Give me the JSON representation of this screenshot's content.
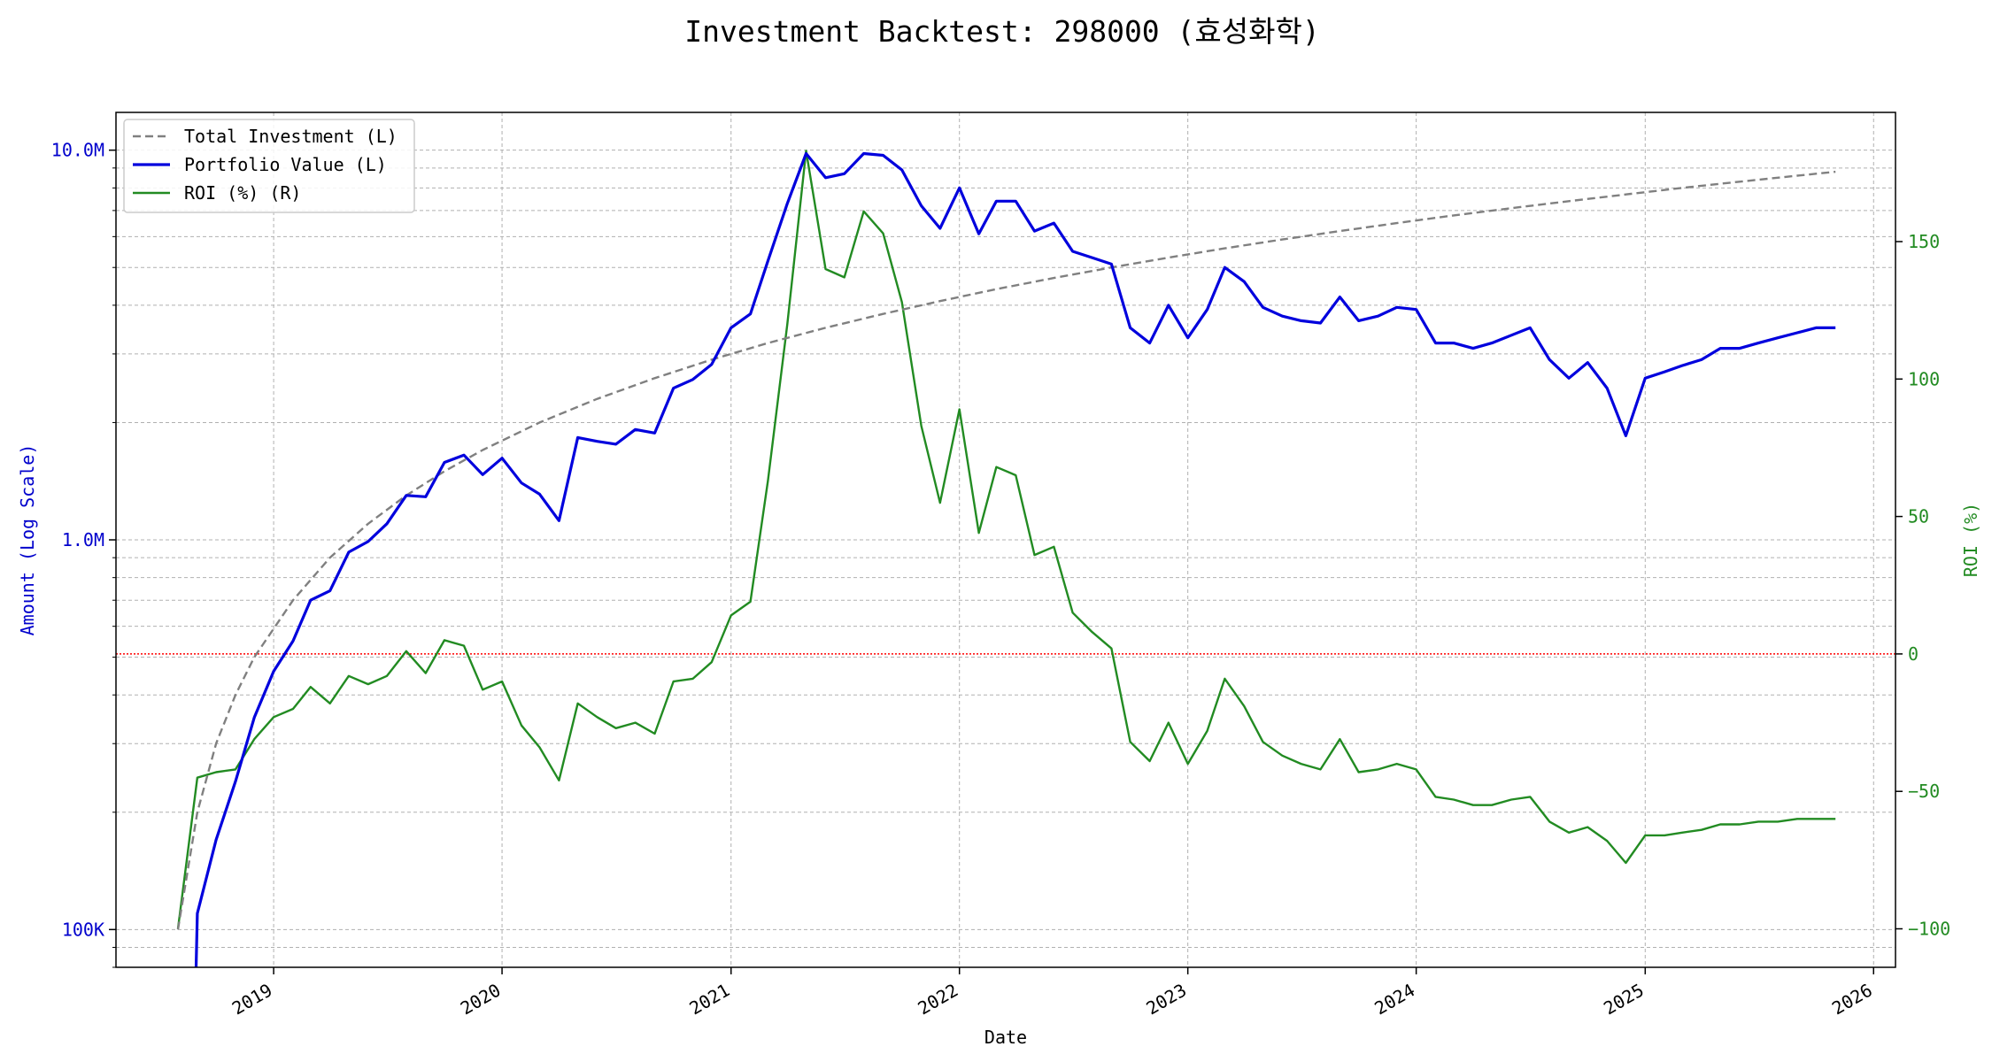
{
  "chart_data": {
    "type": "line",
    "title": "Investment Backtest: 298000 (효성화학)",
    "xlabel": "Date",
    "ylabel_left": "Amount (Log Scale)",
    "ylabel_right": "ROI (%)",
    "yscale_left": "log",
    "ylim_left": [
      80000,
      12500000
    ],
    "ylim_right": [
      -114,
      197
    ],
    "xlim": [
      "2018-04-24",
      "2026-02-05"
    ],
    "grid": true,
    "legend_position": "top-left",
    "x_ticks": [
      "2019",
      "2020",
      "2021",
      "2022",
      "2023",
      "2024",
      "2025",
      "2026"
    ],
    "y_left_ticks": [
      {
        "value": 100000,
        "label": "100K"
      },
      {
        "value": 1000000,
        "label": "1.0M"
      },
      {
        "value": 10000000,
        "label": "10.0M"
      }
    ],
    "y_right_ticks": [
      {
        "value": -100,
        "label": "−100"
      },
      {
        "value": -50,
        "label": "−50"
      },
      {
        "value": 0,
        "label": "0"
      },
      {
        "value": 50,
        "label": "50"
      },
      {
        "value": 100,
        "label": "100"
      },
      {
        "value": 150,
        "label": "150"
      }
    ],
    "reference_line": {
      "axis": "right",
      "value": 0,
      "color": "#ff0000",
      "style": "dotted"
    },
    "series": [
      {
        "name": "Total Investment (L)",
        "axis": "left",
        "color": "#808080",
        "style": "dashed",
        "points": [
          [
            "2018-08-01",
            100000
          ],
          [
            "2018-09-01",
            200000
          ],
          [
            "2018-10-01",
            300000
          ],
          [
            "2018-11-01",
            400000
          ],
          [
            "2018-12-01",
            500000
          ],
          [
            "2019-02-01",
            700000
          ],
          [
            "2019-04-01",
            900000
          ],
          [
            "2019-06-01",
            1100000
          ],
          [
            "2019-08-01",
            1300000
          ],
          [
            "2019-10-01",
            1500000
          ],
          [
            "2019-12-01",
            1700000
          ],
          [
            "2020-03-01",
            2000000
          ],
          [
            "2020-06-01",
            2300000
          ],
          [
            "2020-09-01",
            2600000
          ],
          [
            "2020-12-01",
            2900000
          ],
          [
            "2021-03-01",
            3200000
          ],
          [
            "2021-06-01",
            3500000
          ],
          [
            "2021-09-01",
            3800000
          ],
          [
            "2021-12-01",
            4100000
          ],
          [
            "2022-03-01",
            4400000
          ],
          [
            "2022-06-01",
            4700000
          ],
          [
            "2022-09-01",
            5000000
          ],
          [
            "2022-12-01",
            5300000
          ],
          [
            "2023-03-01",
            5600000
          ],
          [
            "2023-06-01",
            5900000
          ],
          [
            "2023-09-01",
            6200000
          ],
          [
            "2023-12-01",
            6500000
          ],
          [
            "2024-03-01",
            6800000
          ],
          [
            "2024-06-01",
            7100000
          ],
          [
            "2024-09-01",
            7400000
          ],
          [
            "2024-12-01",
            7700000
          ],
          [
            "2025-03-01",
            8000000
          ],
          [
            "2025-06-01",
            8300000
          ],
          [
            "2025-09-01",
            8600000
          ],
          [
            "2025-11-01",
            8800000
          ]
        ]
      },
      {
        "name": "Portfolio Value (L)",
        "axis": "left",
        "color": "#0000dd",
        "style": "solid",
        "points": [
          [
            "2018-08-30",
            80000
          ],
          [
            "2018-09-01",
            110000
          ],
          [
            "2018-10-01",
            170000
          ],
          [
            "2018-11-01",
            240000
          ],
          [
            "2018-12-01",
            350000
          ],
          [
            "2019-01-01",
            460000
          ],
          [
            "2019-02-01",
            550000
          ],
          [
            "2019-03-01",
            700000
          ],
          [
            "2019-04-01",
            740000
          ],
          [
            "2019-05-01",
            930000
          ],
          [
            "2019-06-01",
            990000
          ],
          [
            "2019-07-01",
            1100000
          ],
          [
            "2019-08-01",
            1300000
          ],
          [
            "2019-09-01",
            1290000
          ],
          [
            "2019-10-01",
            1580000
          ],
          [
            "2019-11-01",
            1650000
          ],
          [
            "2019-12-01",
            1470000
          ],
          [
            "2020-01-01",
            1620000
          ],
          [
            "2020-02-01",
            1400000
          ],
          [
            "2020-03-01",
            1310000
          ],
          [
            "2020-04-01",
            1120000
          ],
          [
            "2020-05-01",
            1830000
          ],
          [
            "2020-06-01",
            1790000
          ],
          [
            "2020-07-01",
            1760000
          ],
          [
            "2020-08-01",
            1920000
          ],
          [
            "2020-09-01",
            1880000
          ],
          [
            "2020-10-01",
            2450000
          ],
          [
            "2020-11-01",
            2580000
          ],
          [
            "2020-12-01",
            2820000
          ],
          [
            "2021-01-01",
            3500000
          ],
          [
            "2021-02-01",
            3800000
          ],
          [
            "2021-03-01",
            5200000
          ],
          [
            "2021-04-01",
            7300000
          ],
          [
            "2021-05-01",
            9800000
          ],
          [
            "2021-06-01",
            8500000
          ],
          [
            "2021-07-01",
            8700000
          ],
          [
            "2021-08-01",
            9800000
          ],
          [
            "2021-09-01",
            9700000
          ],
          [
            "2021-10-01",
            8900000
          ],
          [
            "2021-11-01",
            7200000
          ],
          [
            "2021-12-01",
            6300000
          ],
          [
            "2022-01-01",
            8000000
          ],
          [
            "2022-02-01",
            6100000
          ],
          [
            "2022-03-01",
            7400000
          ],
          [
            "2022-04-01",
            7400000
          ],
          [
            "2022-05-01",
            6200000
          ],
          [
            "2022-06-01",
            6500000
          ],
          [
            "2022-07-01",
            5500000
          ],
          [
            "2022-08-01",
            5300000
          ],
          [
            "2022-09-01",
            5100000
          ],
          [
            "2022-10-01",
            3500000
          ],
          [
            "2022-11-01",
            3200000
          ],
          [
            "2022-12-01",
            4000000
          ],
          [
            "2023-01-01",
            3300000
          ],
          [
            "2023-02-01",
            3900000
          ],
          [
            "2023-03-01",
            5000000
          ],
          [
            "2023-04-01",
            4600000
          ],
          [
            "2023-05-01",
            3950000
          ],
          [
            "2023-06-01",
            3750000
          ],
          [
            "2023-07-01",
            3650000
          ],
          [
            "2023-08-01",
            3600000
          ],
          [
            "2023-09-01",
            4200000
          ],
          [
            "2023-10-01",
            3650000
          ],
          [
            "2023-11-01",
            3750000
          ],
          [
            "2023-12-01",
            3950000
          ],
          [
            "2024-01-01",
            3900000
          ],
          [
            "2024-02-01",
            3200000
          ],
          [
            "2024-03-01",
            3200000
          ],
          [
            "2024-04-01",
            3100000
          ],
          [
            "2024-05-01",
            3200000
          ],
          [
            "2024-06-01",
            3350000
          ],
          [
            "2024-07-01",
            3500000
          ],
          [
            "2024-08-01",
            2900000
          ],
          [
            "2024-09-01",
            2600000
          ],
          [
            "2024-10-01",
            2850000
          ],
          [
            "2024-11-01",
            2450000
          ],
          [
            "2024-12-01",
            1850000
          ],
          [
            "2025-01-01",
            2600000
          ],
          [
            "2025-02-01",
            2700000
          ],
          [
            "2025-03-01",
            2800000
          ],
          [
            "2025-04-01",
            2900000
          ],
          [
            "2025-05-01",
            3100000
          ],
          [
            "2025-06-01",
            3100000
          ],
          [
            "2025-07-01",
            3200000
          ],
          [
            "2025-08-01",
            3300000
          ],
          [
            "2025-09-01",
            3400000
          ],
          [
            "2025-10-01",
            3500000
          ],
          [
            "2025-11-01",
            3500000
          ]
        ]
      },
      {
        "name": "ROI (%) (R)",
        "axis": "right",
        "color": "#228b22",
        "style": "solid",
        "points": [
          [
            "2018-08-01",
            -100
          ],
          [
            "2018-09-01",
            -45
          ],
          [
            "2018-10-01",
            -43
          ],
          [
            "2018-11-01",
            -42
          ],
          [
            "2018-12-01",
            -31
          ],
          [
            "2019-01-01",
            -23
          ],
          [
            "2019-02-01",
            -20
          ],
          [
            "2019-03-01",
            -12
          ],
          [
            "2019-04-01",
            -18
          ],
          [
            "2019-05-01",
            -8
          ],
          [
            "2019-06-01",
            -11
          ],
          [
            "2019-07-01",
            -8
          ],
          [
            "2019-08-01",
            1
          ],
          [
            "2019-09-01",
            -7
          ],
          [
            "2019-10-01",
            5
          ],
          [
            "2019-11-01",
            3
          ],
          [
            "2019-12-01",
            -13
          ],
          [
            "2020-01-01",
            -10
          ],
          [
            "2020-02-01",
            -26
          ],
          [
            "2020-03-01",
            -34
          ],
          [
            "2020-04-01",
            -46
          ],
          [
            "2020-05-01",
            -18
          ],
          [
            "2020-06-01",
            -23
          ],
          [
            "2020-07-01",
            -27
          ],
          [
            "2020-08-01",
            -25
          ],
          [
            "2020-09-01",
            -29
          ],
          [
            "2020-10-01",
            -10
          ],
          [
            "2020-11-01",
            -9
          ],
          [
            "2020-12-01",
            -3
          ],
          [
            "2021-01-01",
            14
          ],
          [
            "2021-02-01",
            19
          ],
          [
            "2021-03-01",
            63
          ],
          [
            "2021-04-01",
            120
          ],
          [
            "2021-05-01",
            183
          ],
          [
            "2021-06-01",
            140
          ],
          [
            "2021-07-01",
            137
          ],
          [
            "2021-08-01",
            161
          ],
          [
            "2021-09-01",
            153
          ],
          [
            "2021-10-01",
            128
          ],
          [
            "2021-11-01",
            83
          ],
          [
            "2021-12-01",
            55
          ],
          [
            "2022-01-01",
            89
          ],
          [
            "2022-02-01",
            44
          ],
          [
            "2022-03-01",
            68
          ],
          [
            "2022-04-01",
            65
          ],
          [
            "2022-05-01",
            36
          ],
          [
            "2022-06-01",
            39
          ],
          [
            "2022-07-01",
            15
          ],
          [
            "2022-08-01",
            8
          ],
          [
            "2022-09-01",
            2
          ],
          [
            "2022-10-01",
            -32
          ],
          [
            "2022-11-01",
            -39
          ],
          [
            "2022-12-01",
            -25
          ],
          [
            "2023-01-01",
            -40
          ],
          [
            "2023-02-01",
            -28
          ],
          [
            "2023-03-01",
            -9
          ],
          [
            "2023-04-01",
            -19
          ],
          [
            "2023-05-01",
            -32
          ],
          [
            "2023-06-01",
            -37
          ],
          [
            "2023-07-01",
            -40
          ],
          [
            "2023-08-01",
            -42
          ],
          [
            "2023-09-01",
            -31
          ],
          [
            "2023-10-01",
            -43
          ],
          [
            "2023-11-01",
            -42
          ],
          [
            "2023-12-01",
            -40
          ],
          [
            "2024-01-01",
            -42
          ],
          [
            "2024-02-01",
            -52
          ],
          [
            "2024-03-01",
            -53
          ],
          [
            "2024-04-01",
            -55
          ],
          [
            "2024-05-01",
            -55
          ],
          [
            "2024-06-01",
            -53
          ],
          [
            "2024-07-01",
            -52
          ],
          [
            "2024-08-01",
            -61
          ],
          [
            "2024-09-01",
            -65
          ],
          [
            "2024-10-01",
            -63
          ],
          [
            "2024-11-01",
            -68
          ],
          [
            "2024-12-01",
            -76
          ],
          [
            "2025-01-01",
            -66
          ],
          [
            "2025-02-01",
            -66
          ],
          [
            "2025-03-01",
            -65
          ],
          [
            "2025-04-01",
            -64
          ],
          [
            "2025-05-01",
            -62
          ],
          [
            "2025-06-01",
            -62
          ],
          [
            "2025-07-01",
            -61
          ],
          [
            "2025-08-01",
            -61
          ],
          [
            "2025-09-01",
            -60
          ],
          [
            "2025-10-01",
            -60
          ],
          [
            "2025-11-01",
            -60
          ]
        ]
      }
    ]
  }
}
